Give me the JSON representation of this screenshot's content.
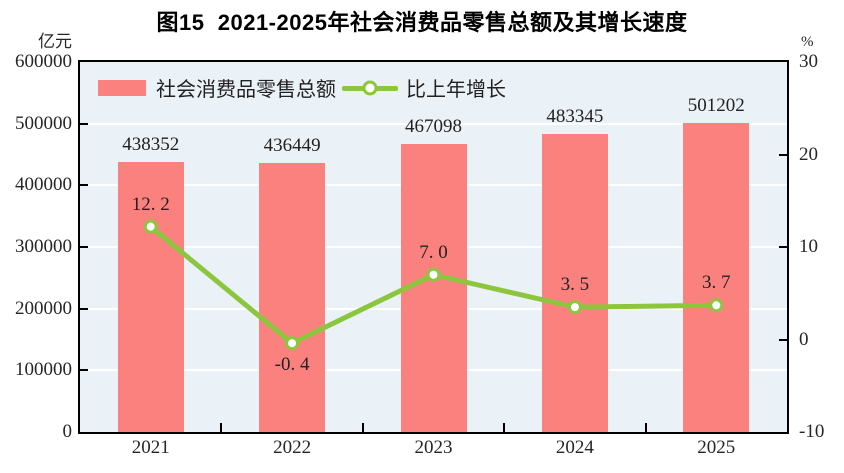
{
  "chart_data": {
    "type": "combo-bar-line",
    "title": "图15  2021-2025年社会消费品零售总额及其增长速度",
    "categories": [
      "2021",
      "2022",
      "2023",
      "2024",
      "2025"
    ],
    "series": [
      {
        "name": "社会消费品零售总额",
        "type": "bar",
        "axis": "left",
        "color": "#FB817E",
        "values": [
          438352,
          436449,
          467098,
          483345,
          501202
        ],
        "data_labels": [
          "438352",
          "436449",
          "467098",
          "483345",
          "501202"
        ]
      },
      {
        "name": "比上年增长",
        "type": "line",
        "axis": "right",
        "color": "#8CC63F",
        "marker": "circle-white-fill",
        "values": [
          12.2,
          -0.4,
          7.0,
          3.5,
          3.7
        ],
        "data_labels": [
          "12. 2",
          "-0. 4",
          "7. 0",
          "3. 5",
          "3. 7"
        ]
      }
    ],
    "left_axis": {
      "unit": "亿元",
      "min": 0,
      "max": 600000,
      "step": 100000,
      "tick_labels": [
        "600000",
        "500000",
        "400000",
        "300000",
        "200000",
        "100000",
        "0"
      ]
    },
    "right_axis": {
      "unit": "%",
      "min": -10,
      "max": 30,
      "step": 10,
      "tick_labels": [
        "30",
        "20",
        "10",
        "0",
        "-10"
      ]
    },
    "legend_position": "top-left-inside",
    "grid": true,
    "colors": {
      "plot_bg": "#EBF2F7",
      "gridline": "#FFFFFF",
      "axis_frame": "#000000",
      "text": "#262626"
    }
  }
}
